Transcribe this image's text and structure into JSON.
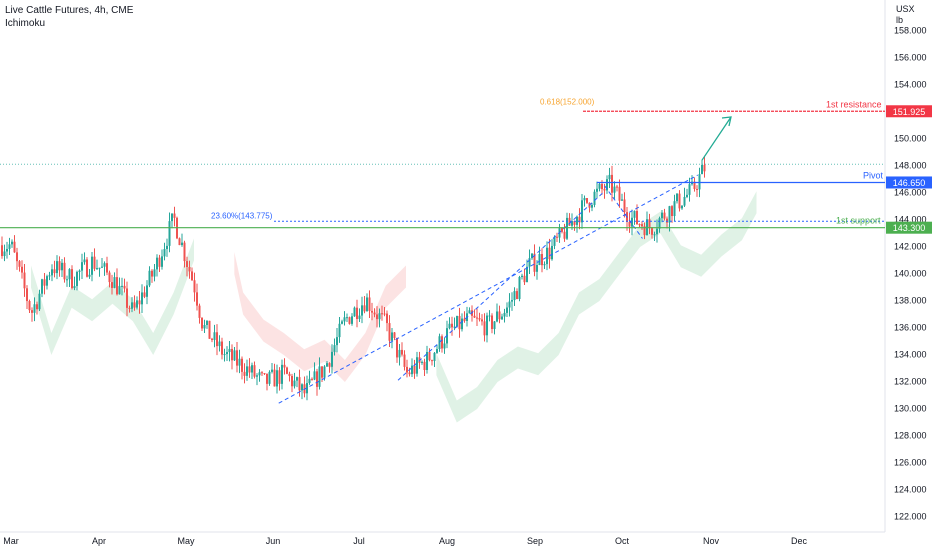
{
  "header": {
    "title": "Live Cattle Futures, 4h, CME",
    "indicator": "Ichimoku"
  },
  "axis_unit": {
    "line1": "USX",
    "line2": "lb"
  },
  "colors": {
    "up": "#26a69a",
    "down": "#ef5350",
    "resistance": "#f23645",
    "pivot": "#2962ff",
    "support": "#4caf50",
    "fib": "#f7a530",
    "trendline": "#2962ff",
    "arrow": "#22ab94",
    "cloud_bull": "#d6eedd",
    "cloud_bear": "#fbd9d9",
    "grid": "#f0f3fa"
  },
  "chart_data": {
    "type": "candlestick",
    "title": "Live Cattle Futures, 4h, CME",
    "x_ticks": [
      "Mar",
      "Apr",
      "May",
      "Jun",
      "Jul",
      "Aug",
      "Sep",
      "Oct",
      "Nov",
      "Dec"
    ],
    "y_ticks": [
      122,
      124,
      126,
      128,
      130,
      132,
      134,
      136,
      138,
      140,
      142,
      144,
      146,
      148,
      150,
      152,
      154,
      156,
      158
    ],
    "ylim": [
      120.7,
      160.0
    ],
    "grid": false,
    "price_path": [
      {
        "date": "Mar 01",
        "price": 142.0
      },
      {
        "date": "Mar 08",
        "price": 137.0
      },
      {
        "date": "Mar 15",
        "price": 140.5
      },
      {
        "date": "Mar 22",
        "price": 139.5
      },
      {
        "date": "Mar 29",
        "price": 140.8
      },
      {
        "date": "Apr 05",
        "price": 139.5
      },
      {
        "date": "Apr 12",
        "price": 137.0
      },
      {
        "date": "Apr 19",
        "price": 140.0
      },
      {
        "date": "Apr 26",
        "price": 144.0
      },
      {
        "date": "May 03",
        "price": 139.0
      },
      {
        "date": "May 06",
        "price": 136.0
      },
      {
        "date": "May 13",
        "price": 134.0
      },
      {
        "date": "May 20",
        "price": 133.0
      },
      {
        "date": "May 27",
        "price": 131.8
      },
      {
        "date": "Jun 03",
        "price": 132.5
      },
      {
        "date": "Jun 10",
        "price": 131.0
      },
      {
        "date": "Jun 17",
        "price": 133.0
      },
      {
        "date": "Jun 24",
        "price": 136.5
      },
      {
        "date": "Jul 01",
        "price": 138.0
      },
      {
        "date": "Jul 08",
        "price": 136.0
      },
      {
        "date": "Jul 15",
        "price": 132.5
      },
      {
        "date": "Jul 22",
        "price": 133.5
      },
      {
        "date": "Jul 29",
        "price": 135.5
      },
      {
        "date": "Aug 05",
        "price": 136.5
      },
      {
        "date": "Aug 12",
        "price": 136.0
      },
      {
        "date": "Aug 19",
        "price": 137.5
      },
      {
        "date": "Aug 26",
        "price": 140.5
      },
      {
        "date": "Sep 02",
        "price": 141.5
      },
      {
        "date": "Sep 09",
        "price": 143.5
      },
      {
        "date": "Sep 16",
        "price": 145.5
      },
      {
        "date": "Sep 23",
        "price": 146.5
      },
      {
        "date": "Sep 30",
        "price": 144.0
      },
      {
        "date": "Oct 07",
        "price": 143.3
      },
      {
        "date": "Oct 14",
        "price": 144.8
      },
      {
        "date": "Oct 21",
        "price": 146.0
      },
      {
        "date": "Oct 26",
        "price": 148.0
      }
    ],
    "levels": [
      {
        "name": "1st resistance",
        "value": 151.925,
        "label": "151.925",
        "color": "resistance"
      },
      {
        "name": "Pivot",
        "value": 146.65,
        "label": "146.650",
        "color": "pivot"
      },
      {
        "name": "1st support",
        "value": 143.3,
        "label": "143.300",
        "color": "support"
      }
    ],
    "fibonacci": [
      {
        "label": "0.618(152.000)",
        "value": 152.0
      },
      {
        "label": "23.60%(143.775)",
        "value": 143.775
      }
    ],
    "last_price": 148.0
  }
}
